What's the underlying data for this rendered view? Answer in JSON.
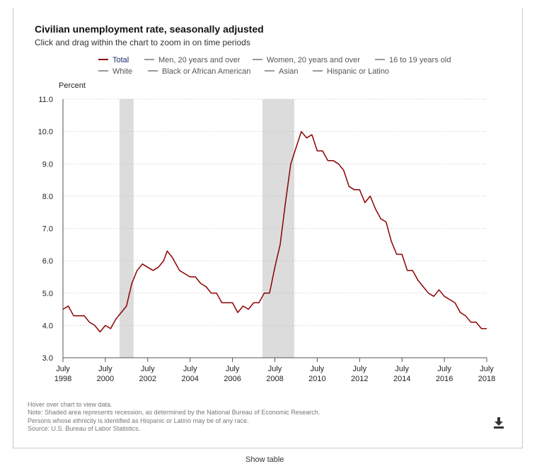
{
  "title": "Civilian unemployment rate, seasonally adjusted",
  "subtitle": "Click and drag within the chart to zoom in on time periods",
  "legend": [
    {
      "label": "Total",
      "active": true
    },
    {
      "label": "Men, 20 years and over",
      "active": false
    },
    {
      "label": "Women, 20 years and over",
      "active": false
    },
    {
      "label": "16 to 19 years old",
      "active": false
    },
    {
      "label": "White",
      "active": false
    },
    {
      "label": "Black or African American",
      "active": false
    },
    {
      "label": "Asian",
      "active": false
    },
    {
      "label": "Hispanic or Latino",
      "active": false
    }
  ],
  "notes": [
    "Hover over chart to view data.",
    "Note: Shaded area represents recession, as determined by the National Bureau of Economic Research.",
    "Persons whose ethnicity is identified as Hispanic or Latino may be of any race.",
    "Source: U.S. Bureau of Labor Statistics."
  ],
  "show_table_label": "Show table",
  "colors": {
    "series": "#8b0000",
    "recession": "#dcdcdc",
    "grid": "#bbbbbb",
    "legend_active_text": "#1f2a6b"
  },
  "icons": {
    "download": "download-icon"
  },
  "chart_data": {
    "type": "line",
    "ylabel": "Percent",
    "ylim": [
      3.0,
      11.0
    ],
    "yticks": [
      "3.0",
      "4.0",
      "5.0",
      "6.0",
      "7.0",
      "8.0",
      "9.0",
      "10.0",
      "11.0"
    ],
    "xlim": [
      "1998-07",
      "2018-07"
    ],
    "xticks": [
      {
        "month": "July",
        "year": "1998"
      },
      {
        "month": "July",
        "year": "2000"
      },
      {
        "month": "July",
        "year": "2002"
      },
      {
        "month": "July",
        "year": "2004"
      },
      {
        "month": "July",
        "year": "2006"
      },
      {
        "month": "July",
        "year": "2008"
      },
      {
        "month": "July",
        "year": "2010"
      },
      {
        "month": "July",
        "year": "2012"
      },
      {
        "month": "July",
        "year": "2014"
      },
      {
        "month": "July",
        "year": "2016"
      },
      {
        "month": "July",
        "year": "2018"
      }
    ],
    "grid": "horizontal dotted",
    "recessions": [
      [
        "2001-03",
        "2001-11"
      ],
      [
        "2007-12",
        "2009-06"
      ]
    ],
    "series": [
      {
        "name": "Total",
        "points": [
          [
            "1998-07",
            4.5
          ],
          [
            "1998-10",
            4.6
          ],
          [
            "1999-01",
            4.3
          ],
          [
            "1999-04",
            4.3
          ],
          [
            "1999-07",
            4.3
          ],
          [
            "1999-10",
            4.1
          ],
          [
            "2000-01",
            4.0
          ],
          [
            "2000-04",
            3.8
          ],
          [
            "2000-07",
            4.0
          ],
          [
            "2000-10",
            3.9
          ],
          [
            "2001-01",
            4.2
          ],
          [
            "2001-04",
            4.4
          ],
          [
            "2001-07",
            4.6
          ],
          [
            "2001-10",
            5.3
          ],
          [
            "2002-01",
            5.7
          ],
          [
            "2002-04",
            5.9
          ],
          [
            "2002-07",
            5.8
          ],
          [
            "2002-10",
            5.7
          ],
          [
            "2003-01",
            5.8
          ],
          [
            "2003-04",
            6.0
          ],
          [
            "2003-06",
            6.3
          ],
          [
            "2003-09",
            6.1
          ],
          [
            "2004-01",
            5.7
          ],
          [
            "2004-04",
            5.6
          ],
          [
            "2004-07",
            5.5
          ],
          [
            "2004-10",
            5.5
          ],
          [
            "2005-01",
            5.3
          ],
          [
            "2005-04",
            5.2
          ],
          [
            "2005-07",
            5.0
          ],
          [
            "2005-10",
            5.0
          ],
          [
            "2006-01",
            4.7
          ],
          [
            "2006-04",
            4.7
          ],
          [
            "2006-07",
            4.7
          ],
          [
            "2006-10",
            4.4
          ],
          [
            "2007-01",
            4.6
          ],
          [
            "2007-04",
            4.5
          ],
          [
            "2007-07",
            4.7
          ],
          [
            "2007-10",
            4.7
          ],
          [
            "2008-01",
            5.0
          ],
          [
            "2008-04",
            5.0
          ],
          [
            "2008-07",
            5.8
          ],
          [
            "2008-10",
            6.5
          ],
          [
            "2009-01",
            7.8
          ],
          [
            "2009-04",
            9.0
          ],
          [
            "2009-07",
            9.5
          ],
          [
            "2009-10",
            10.0
          ],
          [
            "2010-01",
            9.8
          ],
          [
            "2010-04",
            9.9
          ],
          [
            "2010-07",
            9.4
          ],
          [
            "2010-10",
            9.4
          ],
          [
            "2011-01",
            9.1
          ],
          [
            "2011-04",
            9.1
          ],
          [
            "2011-07",
            9.0
          ],
          [
            "2011-10",
            8.8
          ],
          [
            "2012-01",
            8.3
          ],
          [
            "2012-04",
            8.2
          ],
          [
            "2012-07",
            8.2
          ],
          [
            "2012-10",
            7.8
          ],
          [
            "2013-01",
            8.0
          ],
          [
            "2013-04",
            7.6
          ],
          [
            "2013-07",
            7.3
          ],
          [
            "2013-10",
            7.2
          ],
          [
            "2014-01",
            6.6
          ],
          [
            "2014-04",
            6.2
          ],
          [
            "2014-07",
            6.2
          ],
          [
            "2014-10",
            5.7
          ],
          [
            "2015-01",
            5.7
          ],
          [
            "2015-04",
            5.4
          ],
          [
            "2015-07",
            5.2
          ],
          [
            "2015-10",
            5.0
          ],
          [
            "2016-01",
            4.9
          ],
          [
            "2016-04",
            5.1
          ],
          [
            "2016-07",
            4.9
          ],
          [
            "2016-10",
            4.8
          ],
          [
            "2017-01",
            4.7
          ],
          [
            "2017-04",
            4.4
          ],
          [
            "2017-07",
            4.3
          ],
          [
            "2017-10",
            4.1
          ],
          [
            "2018-01",
            4.1
          ],
          [
            "2018-04",
            3.9
          ],
          [
            "2018-07",
            3.9
          ]
        ]
      }
    ]
  }
}
